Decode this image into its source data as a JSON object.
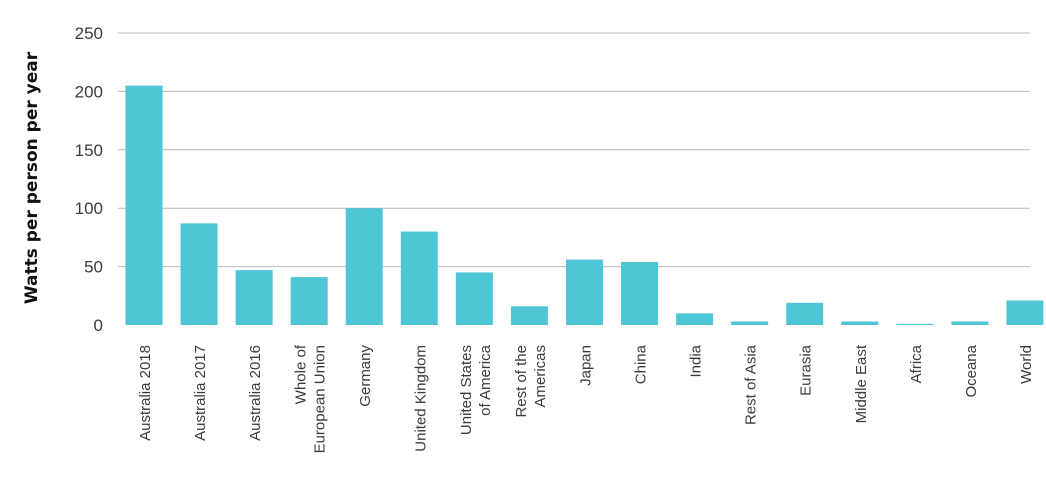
{
  "chart_data": {
    "type": "bar",
    "title": "",
    "xlabel": "",
    "ylabel": "Watts per person per year",
    "ylim": [
      0,
      250
    ],
    "yticks": [
      0,
      50,
      100,
      150,
      200,
      250
    ],
    "grid": true,
    "legend": "none",
    "bar_color": "#4fc6d6",
    "categories": [
      [
        "Australia 2018"
      ],
      [
        "Australia 2017"
      ],
      [
        "Australia 2016"
      ],
      [
        "Whole of",
        "European Union"
      ],
      [
        "Germany"
      ],
      [
        "United Kingdom"
      ],
      [
        "United States",
        "of America"
      ],
      [
        "Rest of the",
        "Americas"
      ],
      [
        "Japan"
      ],
      [
        "China"
      ],
      [
        "India"
      ],
      [
        "Rest of Asia"
      ],
      [
        "Eurasia"
      ],
      [
        "Middle East"
      ],
      [
        "Africa"
      ],
      [
        "Oceana"
      ],
      [
        "World"
      ]
    ],
    "values": [
      205,
      87,
      47,
      41,
      100,
      80,
      45,
      16,
      56,
      54,
      10,
      3,
      19,
      3,
      1,
      3,
      21
    ]
  }
}
